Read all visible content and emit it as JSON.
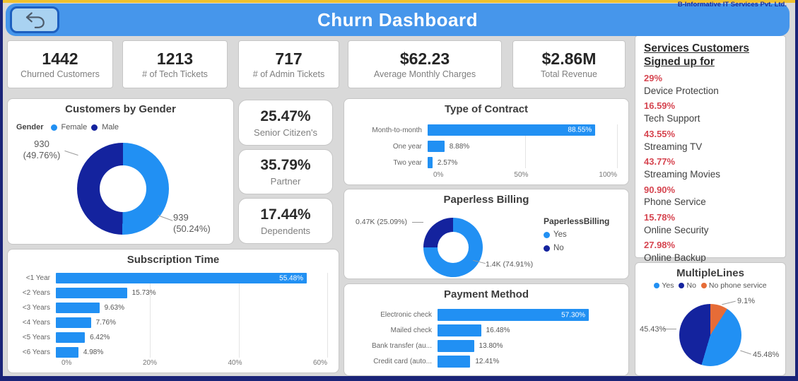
{
  "brand": "B-Informative IT Services Pvt. Ltd.",
  "header": {
    "title": "Churn Dashboard",
    "back_icon": "undo-arrow"
  },
  "colors": {
    "accent_blue": "#2190F3",
    "navy": "#14239E",
    "orange": "#E66C37",
    "red_pct": "#D64550",
    "header_blue": "#4696EB",
    "frame_navy": "#1A2478",
    "top_strip_yellow": "#F0C12E"
  },
  "kpis": [
    {
      "value": "1442",
      "label": "Churned Customers"
    },
    {
      "value": "1213",
      "label": "# of Tech Tickets"
    },
    {
      "value": "717",
      "label": "# of Admin Tickets"
    },
    {
      "value": "$62.23",
      "label": "Average Monthly Charges"
    },
    {
      "value": "$2.86M",
      "label": "Total Revenue"
    }
  ],
  "stat_cards": [
    {
      "value": "25.47%",
      "label": "Senior Citizen's"
    },
    {
      "value": "35.79%",
      "label": "Partner"
    },
    {
      "value": "17.44%",
      "label": "Dependents"
    }
  ],
  "services_panel": {
    "title": "Services Customers Signed up for",
    "items": [
      {
        "pct": "29%",
        "label": "Device Protection"
      },
      {
        "pct": "16.59%",
        "label": "Tech Support"
      },
      {
        "pct": "43.55%",
        "label": "Streaming TV"
      },
      {
        "pct": "43.77%",
        "label": "Streaming Movies"
      },
      {
        "pct": "90.90%",
        "label": "Phone Service"
      },
      {
        "pct": "15.78%",
        "label": "Online Security"
      },
      {
        "pct": "27.98%",
        "label": "Online Backup"
      }
    ]
  },
  "chart_data": [
    {
      "id": "customers_by_gender",
      "type": "donut",
      "title": "Customers by Gender",
      "legend_title": "Gender",
      "legend_position": "top-left",
      "slices": [
        {
          "name": "Female",
          "value": 939,
          "pct": 50.24,
          "label": "939",
          "label_pct": "(50.24%)",
          "color": "#2190F3"
        },
        {
          "name": "Male",
          "value": 930,
          "pct": 49.76,
          "label": "930",
          "label_pct": "(49.76%)",
          "color": "#14239E"
        }
      ]
    },
    {
      "id": "subscription_time",
      "type": "bar",
      "title": "Subscription Time",
      "categories": [
        "<1 Year",
        "<2 Years",
        "<3 Years",
        "<4 Years",
        "<5 Years",
        "<6 Years"
      ],
      "values": [
        55.48,
        15.73,
        9.63,
        7.76,
        6.42,
        4.98
      ],
      "value_labels": [
        "55.48%",
        "15.73%",
        "9.63%",
        "7.76%",
        "6.42%",
        "4.98%"
      ],
      "xlim": [
        0,
        60
      ],
      "x_ticks": [
        "0%",
        "20%",
        "40%",
        "60%"
      ],
      "bar_color": "#2190F3",
      "grid": true
    },
    {
      "id": "type_of_contract",
      "type": "bar",
      "title": "Type of Contract",
      "categories": [
        "Month-to-month",
        "One year",
        "Two year"
      ],
      "values": [
        88.55,
        8.88,
        2.57
      ],
      "value_labels": [
        "88.55%",
        "8.88%",
        "2.57%"
      ],
      "xlim": [
        0,
        100
      ],
      "x_ticks": [
        "0%",
        "50%",
        "100%"
      ],
      "bar_color": "#2190F3",
      "grid": true
    },
    {
      "id": "paperless_billing",
      "type": "donut",
      "title": "Paperless Billing",
      "legend_title": "PaperlessBilling",
      "legend_position": "right",
      "slices": [
        {
          "name": "Yes",
          "pct": 74.91,
          "label": "1.4K (74.91%)",
          "color": "#2190F3"
        },
        {
          "name": "No",
          "pct": 25.09,
          "label": "0.47K (25.09%)",
          "color": "#14239E"
        }
      ]
    },
    {
      "id": "payment_method",
      "type": "bar",
      "title": "Payment Method",
      "categories": [
        "Electronic check",
        "Mailed check",
        "Bank transfer (au...",
        "Credit card (auto..."
      ],
      "values": [
        57.3,
        16.48,
        13.8,
        12.41
      ],
      "value_labels": [
        "57.30%",
        "16.48%",
        "13.80%",
        "12.41%"
      ],
      "xlim": [
        0,
        68
      ],
      "x_ticks": [],
      "bar_color": "#2190F3",
      "grid": false
    },
    {
      "id": "multiple_lines",
      "type": "pie",
      "title": "MultipleLines",
      "legend": [
        "Yes",
        "No",
        "No phone service"
      ],
      "legend_position": "top",
      "slices": [
        {
          "name": "No phone service",
          "pct": 9.1,
          "label": "9.1%",
          "color": "#E66C37"
        },
        {
          "name": "Yes",
          "pct": 45.48,
          "label": "45.48%",
          "color": "#2190F3"
        },
        {
          "name": "No",
          "pct": 45.43,
          "label": "45.43%",
          "color": "#14239E"
        }
      ]
    }
  ]
}
